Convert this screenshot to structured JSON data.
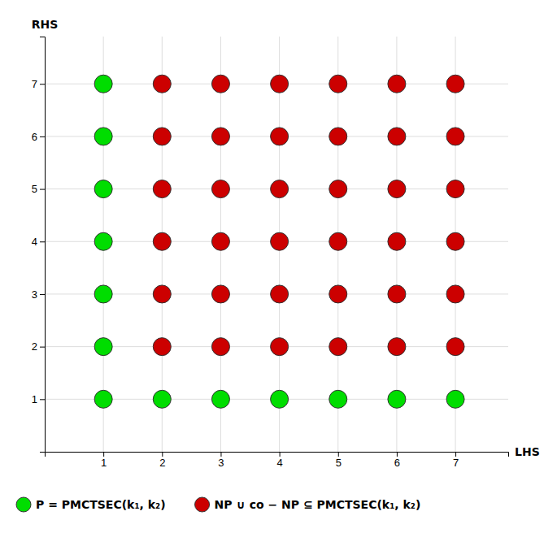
{
  "chart_data": {
    "type": "scatter",
    "title": "",
    "x_label": "LHS",
    "y_label": "RHS",
    "xlim": [
      0,
      7.9
    ],
    "ylim": [
      0,
      7.9
    ],
    "xticks": [
      1,
      2,
      3,
      4,
      5,
      6,
      7
    ],
    "yticks": [
      1,
      2,
      3,
      4,
      5,
      6,
      7
    ],
    "grid": true,
    "legend": "bottom",
    "series": [
      {
        "name": "P = PMCTSEC(k₁, k₂)",
        "color": "#00dd00",
        "x": [
          1,
          2,
          3,
          4,
          5,
          6,
          7,
          1,
          1,
          1,
          1,
          1,
          1
        ],
        "values": [
          1,
          1,
          1,
          1,
          1,
          1,
          1,
          2,
          3,
          4,
          5,
          6,
          7
        ]
      },
      {
        "name": "NP ∪ co − NP ⊆ PMCTSEC(k₁, k₂)",
        "color": "#cc0000",
        "x": [
          2,
          3,
          4,
          5,
          6,
          7,
          2,
          3,
          4,
          5,
          6,
          7,
          2,
          3,
          4,
          5,
          6,
          7,
          2,
          3,
          4,
          5,
          6,
          7,
          2,
          3,
          4,
          5,
          6,
          7,
          2,
          3,
          4,
          5,
          6,
          7
        ],
        "values": [
          2,
          2,
          2,
          2,
          2,
          2,
          3,
          3,
          3,
          3,
          3,
          3,
          4,
          4,
          4,
          4,
          4,
          4,
          5,
          5,
          5,
          5,
          5,
          5,
          6,
          6,
          6,
          6,
          6,
          6,
          7,
          7,
          7,
          7,
          7,
          7
        ]
      }
    ]
  }
}
